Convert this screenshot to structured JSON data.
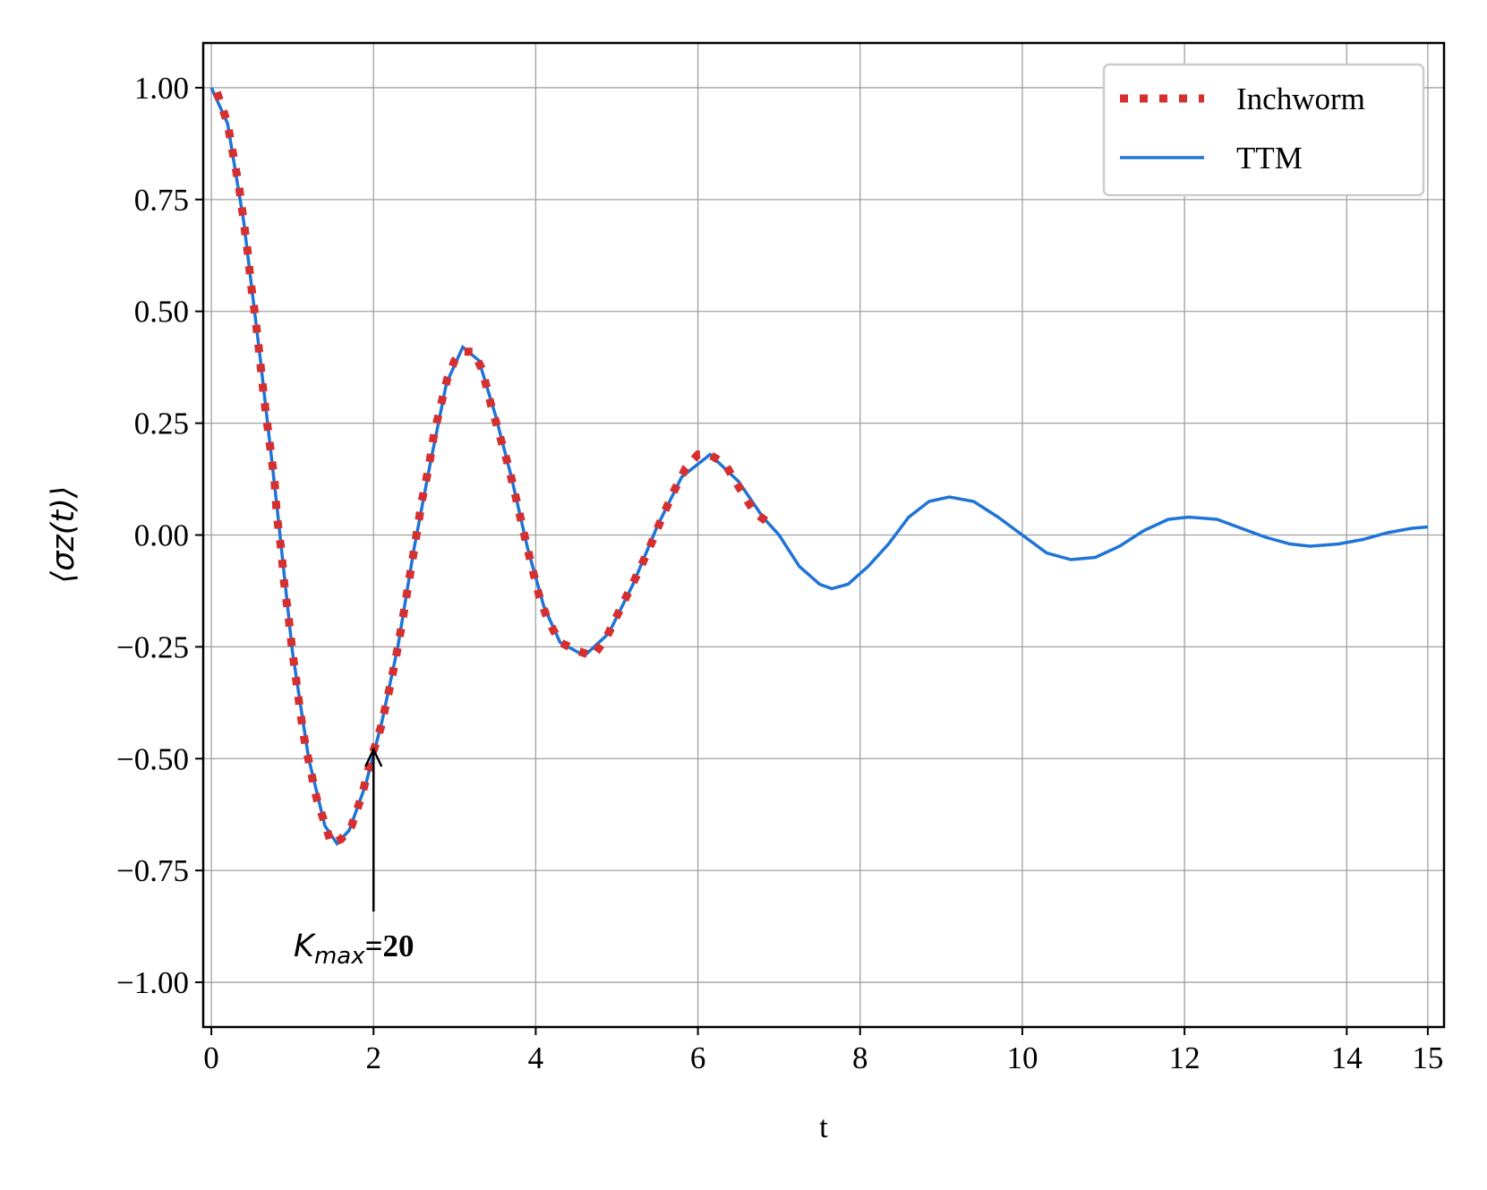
{
  "chart_data": {
    "type": "line",
    "xlabel": "t",
    "ylabel": "⟨σz(t)⟩",
    "xlim": [
      -0.1,
      15.2
    ],
    "ylim": [
      -1.1,
      1.1
    ],
    "xticks": [
      0,
      2,
      4,
      6,
      8,
      10,
      12,
      14,
      15
    ],
    "yticks": [
      {
        "value": 1,
        "label": "1.00"
      },
      {
        "value": 0.75,
        "label": "0.75"
      },
      {
        "value": 0.5,
        "label": "0.50"
      },
      {
        "value": 0.25,
        "label": "0.25"
      },
      {
        "value": 0,
        "label": "0.00"
      },
      {
        "value": -0.25,
        "label": "−0.25"
      },
      {
        "value": -0.5,
        "label": "−0.50"
      },
      {
        "value": -0.75,
        "label": "−0.75"
      },
      {
        "value": -1,
        "label": "−1.00"
      }
    ],
    "grid": true,
    "legend": "upper right",
    "series": [
      {
        "name": "Inchworm",
        "color": "#d62f2f",
        "style": "dotted",
        "x": [
          0.07,
          0.2,
          0.27,
          0.34,
          0.4,
          0.45,
          0.49,
          0.54,
          0.59,
          0.63,
          0.68,
          0.73,
          0.78,
          0.81,
          0.86,
          0.9,
          0.95,
          1.0,
          1.05,
          1.1,
          1.16,
          1.23,
          1.3,
          1.39,
          1.48,
          1.6,
          1.73,
          1.86,
          1.97,
          2.09,
          2.19,
          2.27,
          2.34,
          2.44,
          2.53,
          2.6,
          2.68,
          2.75,
          2.83,
          2.91,
          3.0,
          3.11,
          3.23,
          3.34,
          3.45,
          3.56,
          3.67,
          3.76,
          3.86,
          3.95,
          4.05,
          4.15,
          4.3,
          4.53,
          4.71,
          4.87,
          5.03,
          5.22,
          5.4,
          5.56,
          5.71,
          5.85,
          6.0,
          6.14,
          6.33,
          6.53,
          6.7,
          6.85
        ],
        "values": [
          0.99,
          0.92,
          0.85,
          0.78,
          0.7,
          0.63,
          0.56,
          0.49,
          0.41,
          0.34,
          0.26,
          0.19,
          0.12,
          0.04,
          -0.03,
          -0.11,
          -0.18,
          -0.26,
          -0.33,
          -0.4,
          -0.47,
          -0.53,
          -0.59,
          -0.64,
          -0.69,
          -0.68,
          -0.65,
          -0.58,
          -0.5,
          -0.43,
          -0.35,
          -0.28,
          -0.21,
          -0.1,
          0.0,
          0.08,
          0.15,
          0.23,
          0.29,
          0.35,
          0.39,
          0.41,
          0.41,
          0.37,
          0.29,
          0.22,
          0.15,
          0.08,
          0.0,
          -0.07,
          -0.14,
          -0.19,
          -0.24,
          -0.26,
          -0.27,
          -0.23,
          -0.17,
          -0.1,
          -0.03,
          0.04,
          0.1,
          0.15,
          0.18,
          0.18,
          0.16,
          0.1,
          0.05,
          0.03
        ]
      },
      {
        "name": "TTM",
        "color": "#1f74d6",
        "style": "solid",
        "x": [
          0,
          0.2,
          0.4,
          0.6,
          0.8,
          1.0,
          1.2,
          1.4,
          1.55,
          1.7,
          1.9,
          2.1,
          2.3,
          2.5,
          2.7,
          2.9,
          3.1,
          3.3,
          3.5,
          3.7,
          3.9,
          4.1,
          4.3,
          4.6,
          4.9,
          5.2,
          5.5,
          5.8,
          6.15,
          6.5,
          6.8,
          7.0,
          7.25,
          7.5,
          7.65,
          7.85,
          8.1,
          8.35,
          8.6,
          8.85,
          9.1,
          9.4,
          9.7,
          10.0,
          10.3,
          10.6,
          10.9,
          11.2,
          11.5,
          11.8,
          12.05,
          12.4,
          12.7,
          13.0,
          13.3,
          13.55,
          13.9,
          14.2,
          14.5,
          14.8,
          15.0
        ],
        "values": [
          1.0,
          0.92,
          0.7,
          0.4,
          0.08,
          -0.26,
          -0.5,
          -0.65,
          -0.69,
          -0.66,
          -0.56,
          -0.42,
          -0.25,
          -0.03,
          0.16,
          0.34,
          0.42,
          0.39,
          0.27,
          0.13,
          -0.03,
          -0.16,
          -0.24,
          -0.27,
          -0.22,
          -0.11,
          0.02,
          0.13,
          0.18,
          0.12,
          0.04,
          0.0,
          -0.07,
          -0.11,
          -0.12,
          -0.11,
          -0.07,
          -0.02,
          0.04,
          0.075,
          0.085,
          0.075,
          0.04,
          0.0,
          -0.04,
          -0.055,
          -0.05,
          -0.025,
          0.01,
          0.035,
          0.04,
          0.035,
          0.015,
          -0.005,
          -0.02,
          -0.025,
          -0.02,
          -0.01,
          0.005,
          0.015,
          0.018
        ]
      }
    ],
    "annotation": {
      "text": [
        "K",
        "max",
        "=20"
      ],
      "x": 2
    }
  }
}
